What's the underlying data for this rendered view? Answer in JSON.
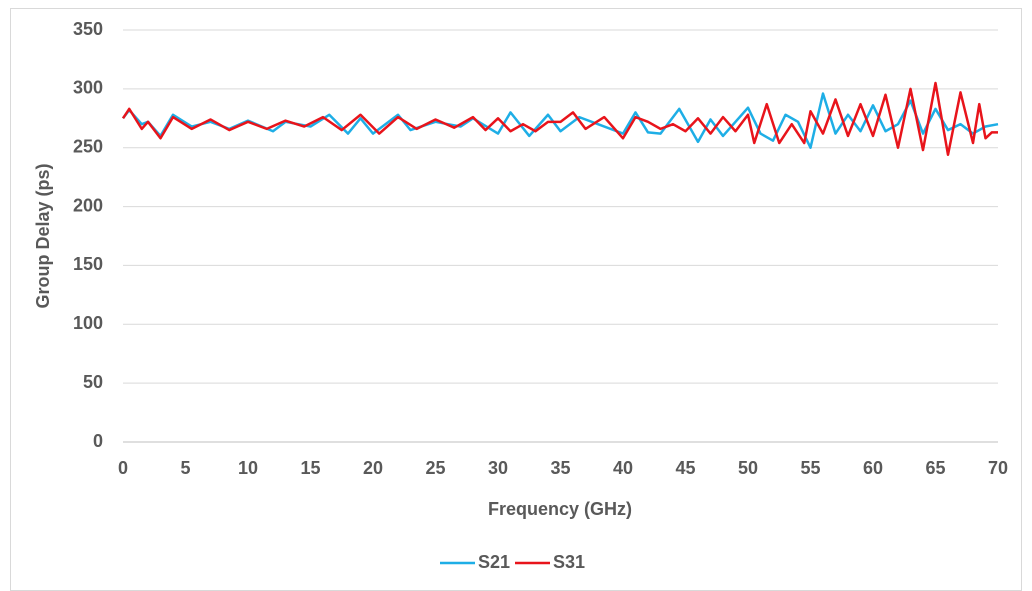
{
  "chart_data": {
    "type": "line",
    "x_label": "Frequency (GHz)",
    "y_label": "Group Delay (ps)",
    "xlim": [
      0,
      70
    ],
    "xticks": [
      0,
      5,
      10,
      15,
      20,
      25,
      30,
      35,
      40,
      45,
      50,
      55,
      60,
      65,
      70
    ],
    "ylim": [
      0,
      350
    ],
    "yticks": [
      0,
      50,
      100,
      150,
      200,
      250,
      300,
      350
    ],
    "grid": true,
    "legend": "bottom",
    "series": [
      {
        "name": "S21",
        "color": "#1eaee6",
        "x": [
          0,
          0.5,
          1.5,
          2,
          3,
          4,
          5.5,
          7,
          8.5,
          10,
          12,
          13,
          15,
          16.5,
          18,
          19,
          20,
          22,
          23,
          25,
          26,
          27,
          28,
          30,
          31,
          32.5,
          34,
          35,
          36.5,
          38,
          40,
          41,
          42,
          43,
          44.5,
          46,
          47,
          48,
          49,
          50,
          51,
          52,
          53,
          54,
          55,
          56,
          57,
          58,
          59,
          60,
          61,
          62,
          63,
          64,
          65,
          66,
          67,
          68,
          69,
          70
        ],
        "values": [
          275,
          282,
          270,
          272,
          260,
          278,
          268,
          272,
          266,
          273,
          264,
          272,
          268,
          278,
          262,
          275,
          262,
          278,
          265,
          272,
          270,
          268,
          275,
          262,
          280,
          260,
          278,
          264,
          276,
          270,
          262,
          280,
          263,
          262,
          283,
          255,
          274,
          260,
          272,
          284,
          262,
          256,
          278,
          272,
          250,
          296,
          262,
          278,
          264,
          286,
          264,
          270,
          290,
          262,
          283,
          265,
          270,
          262,
          268,
          270
        ]
      },
      {
        "name": "S31",
        "color": "#e8141b",
        "x": [
          0,
          0.5,
          1.5,
          2,
          3,
          4,
          5.5,
          7,
          8.5,
          10,
          11.5,
          13,
          14.5,
          16,
          17.5,
          19,
          20.5,
          22,
          23.5,
          25,
          26.5,
          28,
          29,
          30,
          31,
          32,
          33,
          34,
          35,
          36,
          37,
          38.5,
          40,
          41,
          42,
          43,
          44,
          45,
          46,
          47,
          48,
          49,
          50,
          50.5,
          51.5,
          52.5,
          53.5,
          54.5,
          55,
          56,
          57,
          58,
          59,
          60,
          61,
          62,
          63,
          64,
          65,
          66,
          67,
          68,
          68.5,
          69,
          69.5,
          70
        ],
        "values": [
          275,
          283,
          266,
          272,
          258,
          276,
          266,
          274,
          265,
          272,
          266,
          273,
          268,
          276,
          265,
          278,
          262,
          276,
          266,
          274,
          267,
          276,
          265,
          275,
          264,
          270,
          264,
          272,
          272,
          280,
          266,
          276,
          258,
          276,
          272,
          266,
          270,
          264,
          275,
          262,
          276,
          264,
          278,
          254,
          287,
          254,
          270,
          254,
          281,
          262,
          291,
          260,
          287,
          260,
          295,
          250,
          300,
          248,
          305,
          244,
          297,
          254,
          287,
          258,
          263,
          263
        ]
      }
    ]
  }
}
